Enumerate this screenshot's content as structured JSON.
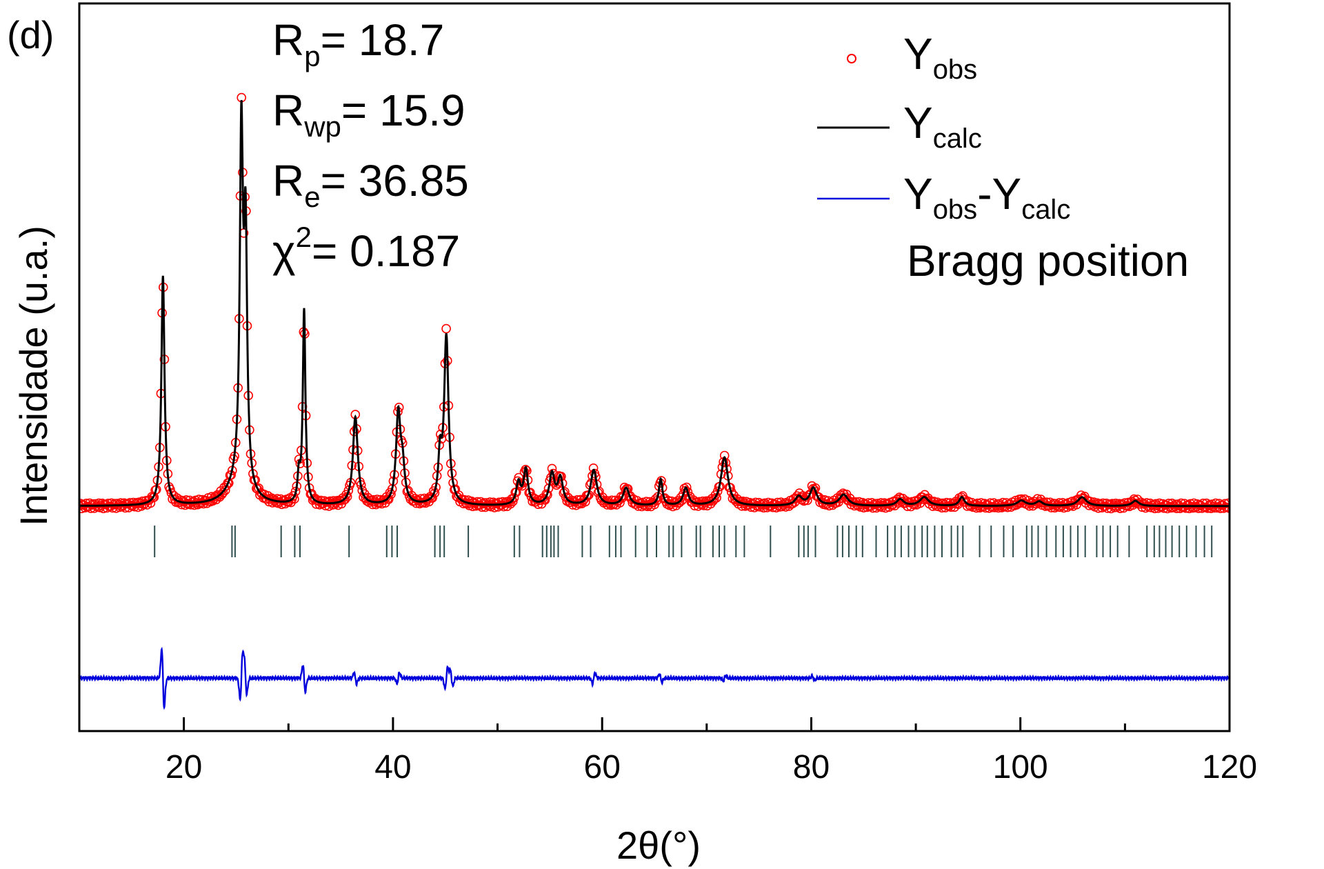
{
  "panel_label": "(d)",
  "stats": [
    {
      "base": "R",
      "sub": "p",
      "sup": "",
      "value": "= 18.7"
    },
    {
      "base": "R",
      "sub": "wp",
      "sup": "",
      "value": "= 15.9"
    },
    {
      "base": "R",
      "sub": "e",
      "sup": "",
      "value": "= 36.85"
    },
    {
      "base": "χ",
      "sub": "",
      "sup": "2",
      "value": "= 0.187"
    }
  ],
  "legend": {
    "obs": {
      "base": "Y",
      "sub": "obs"
    },
    "calc": {
      "base": "Y",
      "sub": "calc"
    },
    "diff": {
      "base1": "Y",
      "sub1": "obs",
      "mid": "-Y",
      "sub2": "calc"
    },
    "bragg": "Bragg position"
  },
  "colors": {
    "obs": "#ff0000",
    "calc": "#000000",
    "diff": "#0000dd",
    "bragg": "#2f4f4f"
  },
  "chart_data": {
    "type": "scatter",
    "xlabel": "2θ(°)",
    "ylabel": "Intensidade (u.a.)",
    "xlim": [
      10,
      120
    ],
    "xticks": [
      20,
      40,
      60,
      80,
      100,
      120
    ],
    "xtick_labels": [
      "20",
      "40",
      "60",
      "80",
      "100",
      "120"
    ],
    "ylim": [
      -0.45,
      1.2
    ],
    "y_ticks_shown": false,
    "legend_position": "top-right",
    "background": 0.06,
    "peaks": [
      {
        "x": 18.0,
        "h": 0.52,
        "w": 0.18
      },
      {
        "x": 25.2,
        "h": 0.05,
        "w": 1.2
      },
      {
        "x": 25.5,
        "h": 0.78,
        "w": 0.18
      },
      {
        "x": 25.9,
        "h": 0.55,
        "w": 0.18
      },
      {
        "x": 31.0,
        "h": 0.06,
        "w": 0.15
      },
      {
        "x": 31.5,
        "h": 0.44,
        "w": 0.15
      },
      {
        "x": 36.4,
        "h": 0.2,
        "w": 0.28
      },
      {
        "x": 40.5,
        "h": 0.2,
        "w": 0.25
      },
      {
        "x": 40.9,
        "h": 0.08,
        "w": 0.25
      },
      {
        "x": 44.5,
        "h": 0.1,
        "w": 0.2
      },
      {
        "x": 45.1,
        "h": 0.38,
        "w": 0.25
      },
      {
        "x": 52.0,
        "h": 0.05,
        "w": 0.25
      },
      {
        "x": 52.7,
        "h": 0.08,
        "w": 0.25
      },
      {
        "x": 55.2,
        "h": 0.07,
        "w": 0.3
      },
      {
        "x": 56.0,
        "h": 0.06,
        "w": 0.3
      },
      {
        "x": 59.2,
        "h": 0.08,
        "w": 0.35
      },
      {
        "x": 62.3,
        "h": 0.04,
        "w": 0.35
      },
      {
        "x": 65.6,
        "h": 0.06,
        "w": 0.2
      },
      {
        "x": 68.0,
        "h": 0.04,
        "w": 0.3
      },
      {
        "x": 71.7,
        "h": 0.11,
        "w": 0.4
      },
      {
        "x": 78.8,
        "h": 0.02,
        "w": 0.4
      },
      {
        "x": 80.2,
        "h": 0.04,
        "w": 0.4
      },
      {
        "x": 83.1,
        "h": 0.025,
        "w": 0.5
      },
      {
        "x": 88.5,
        "h": 0.015,
        "w": 0.4
      },
      {
        "x": 90.8,
        "h": 0.02,
        "w": 0.5
      },
      {
        "x": 94.4,
        "h": 0.02,
        "w": 0.3
      },
      {
        "x": 100.1,
        "h": 0.012,
        "w": 0.5
      },
      {
        "x": 101.8,
        "h": 0.01,
        "w": 0.4
      },
      {
        "x": 105.9,
        "h": 0.02,
        "w": 0.5
      },
      {
        "x": 111.0,
        "h": 0.012,
        "w": 0.4
      }
    ],
    "bragg_positions": [
      17.2,
      24.6,
      24.9,
      29.3,
      30.6,
      31.1,
      35.8,
      39.4,
      39.9,
      40.4,
      44.0,
      44.5,
      44.9,
      47.2,
      51.6,
      52.1,
      54.3,
      54.7,
      55.1,
      55.4,
      55.8,
      58.1,
      58.9,
      60.7,
      61.3,
      61.8,
      63.2,
      64.3,
      65.2,
      66.4,
      66.8,
      67.6,
      69.0,
      69.4,
      70.6,
      71.2,
      71.7,
      72.8,
      73.6,
      76.1,
      78.8,
      79.3,
      79.7,
      80.4,
      82.5,
      83.0,
      83.6,
      84.3,
      84.9,
      86.2,
      87.3,
      88.0,
      88.6,
      89.3,
      89.9,
      90.6,
      91.1,
      91.8,
      92.5,
      93.4,
      94.0,
      94.5,
      96.1,
      97.2,
      98.4,
      99.3,
      100.6,
      101.1,
      101.7,
      102.5,
      103.4,
      104.1,
      104.8,
      105.5,
      106.2,
      107.3,
      107.9,
      108.6,
      109.3,
      110.4,
      112.1,
      112.8,
      113.3,
      113.9,
      114.5,
      115.2,
      115.9,
      116.8,
      117.6,
      118.3
    ],
    "difference_offset": -0.33,
    "difference_features": [
      {
        "x": 18.0,
        "a": 0.11
      },
      {
        "x": 25.5,
        "a": -0.08
      },
      {
        "x": 25.9,
        "a": 0.06
      },
      {
        "x": 31.5,
        "a": 0.05
      },
      {
        "x": 36.4,
        "a": 0.02
      },
      {
        "x": 40.5,
        "a": -0.02
      },
      {
        "x": 45.1,
        "a": -0.04
      },
      {
        "x": 45.6,
        "a": 0.03
      },
      {
        "x": 59.2,
        "a": -0.02
      },
      {
        "x": 65.6,
        "a": 0.015
      },
      {
        "x": 71.7,
        "a": -0.01
      },
      {
        "x": 80.2,
        "a": 0.008
      }
    ]
  }
}
